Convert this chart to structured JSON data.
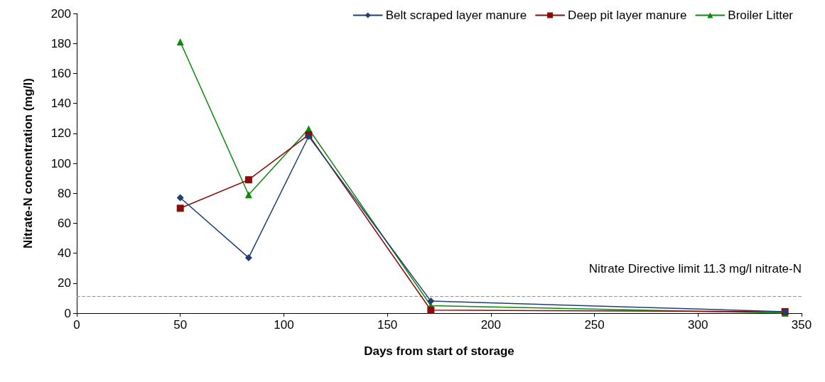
{
  "chart_data": {
    "type": "line",
    "xlabel": "Days from start of storage",
    "ylabel": "Nitrate-N concentration (mg/l)",
    "x": [
      50,
      83,
      112,
      171,
      342
    ],
    "series": [
      {
        "name": "Belt scraped layer manure",
        "color": "#1f3f73",
        "marker": "diamond",
        "values": [
          77,
          37,
          118,
          8,
          1
        ]
      },
      {
        "name": "Deep pit layer manure",
        "color": "#8b0a0a",
        "marker": "square",
        "values": [
          70,
          89,
          119,
          2,
          1
        ]
      },
      {
        "name": "Broiler Litter",
        "color": "#0a8a0a",
        "marker": "triangle",
        "values": [
          181,
          79,
          123,
          5,
          0
        ]
      }
    ],
    "xlim": [
      0,
      350
    ],
    "xticks": [
      0,
      50,
      100,
      150,
      200,
      250,
      300,
      350
    ],
    "ylim": [
      0,
      200
    ],
    "yticks": [
      0,
      20,
      40,
      60,
      80,
      100,
      120,
      140,
      160,
      180,
      200
    ],
    "ref_lines": [
      {
        "axis": "y",
        "value": 11.3,
        "label": "Nitrate Directive limit 11.3 mg/l nitrate-N",
        "color": "#ff6666",
        "line_style": "dashed"
      }
    ],
    "grid": false,
    "legend": "top right"
  }
}
